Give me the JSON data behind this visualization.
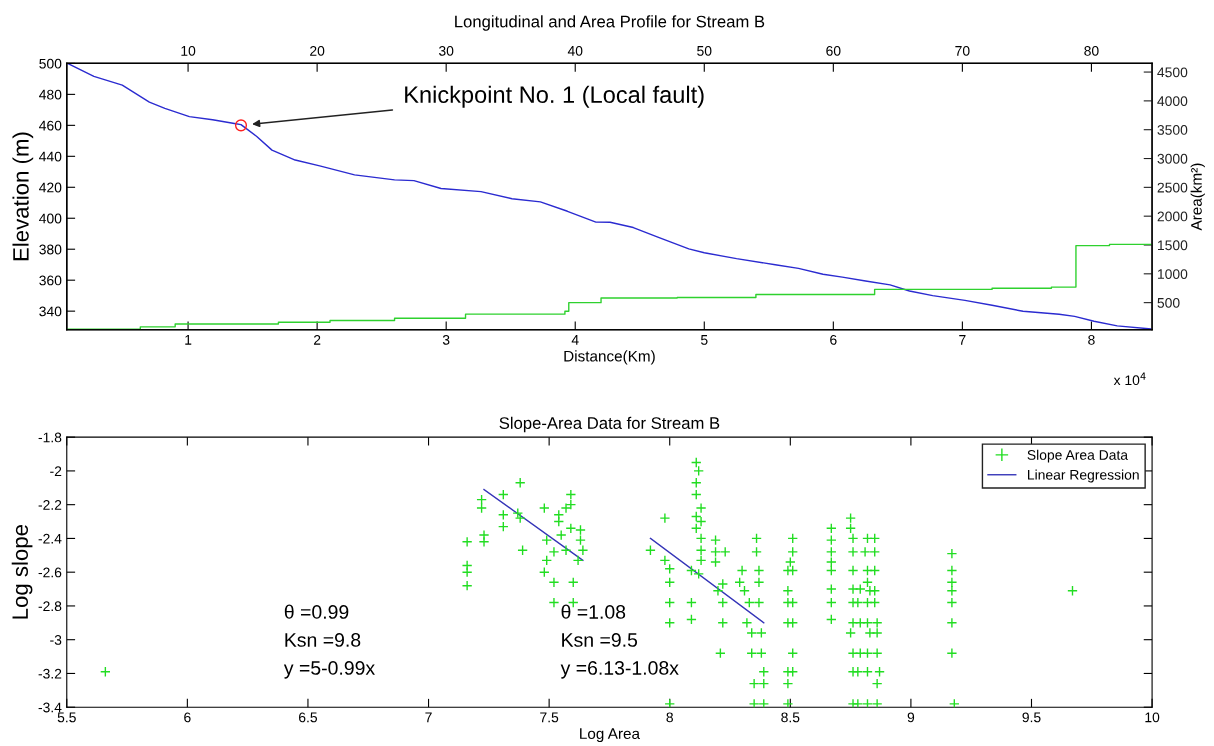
{
  "chart_data": [
    {
      "type": "line",
      "title": "Longitudinal and Area Profile for Stream B",
      "xlabel": "Distance(Km)",
      "ylabel": "Elevation (m)",
      "y2label": "Area(km²)",
      "xlim": [
        0.06,
        8.47
      ],
      "xticks": [
        1,
        2,
        3,
        4,
        5,
        6,
        7,
        8
      ],
      "x2lim": [
        0.6,
        84.7
      ],
      "x2ticks": [
        10,
        20,
        30,
        40,
        50,
        60,
        70,
        80
      ],
      "ylim": [
        328,
        500
      ],
      "yticks": [
        340,
        360,
        380,
        400,
        420,
        440,
        460,
        480,
        500
      ],
      "y2lim": [
        30,
        4650
      ],
      "y2ticks": [
        500,
        1000,
        1500,
        2000,
        2500,
        3000,
        3500,
        4000,
        4500
      ],
      "annotations": [
        "Knickpoint No. 1 (Local fault)",
        "x 10$^{4}$"
      ],
      "series": [
        {
          "color": "#2b2bd0",
          "x": [
            0.067,
            0.27,
            0.49,
            0.7,
            0.82,
            1.01,
            1.19,
            1.37,
            1.41,
            1.53,
            1.65,
            1.83,
            2.02,
            2.29,
            2.6,
            2.75,
            2.96,
            3.27,
            3.51,
            3.73,
            3.94,
            4.16,
            4.27,
            4.45,
            4.64,
            4.88,
            5.0,
            5.25,
            5.55,
            5.73,
            5.92,
            6.07,
            6.25,
            6.44,
            6.59,
            6.77,
            7.02,
            7.23,
            7.47,
            7.75,
            7.87,
            8.02,
            8.2,
            8.46
          ],
          "values": [
            500,
            491.6,
            486,
            475,
            471,
            465.6,
            463.6,
            461,
            460.5,
            453,
            444,
            437.6,
            433.8,
            428,
            424.8,
            424.3,
            419.2,
            417.2,
            412.6,
            410.6,
            404.5,
            397.5,
            397.4,
            394,
            387.8,
            380.2,
            377.7,
            373.9,
            370,
            367.6,
            363.8,
            362,
            359.5,
            357,
            353,
            350,
            347,
            343.8,
            339.9,
            338,
            336.6,
            333.5,
            330.5,
            328.5
          ]
        },
        {
          "type": "scatter",
          "color": "#ff2020",
          "marker": "circle",
          "x": [
            1.41
          ],
          "values": [
            460
          ]
        },
        {
          "type": "step",
          "axis": "y2",
          "color": "#2ed12e",
          "x": [
            0.067,
            0.63,
            0.9,
            1.7,
            2.1,
            2.6,
            3.15,
            3.92,
            3.95,
            4.2,
            4.79,
            5.4,
            6.32,
            7.23,
            7.69,
            7.88,
            8.14,
            8.46
          ],
          "values": [
            40,
            80,
            130,
            160,
            190,
            230,
            300,
            350,
            500,
            580,
            590,
            640,
            730,
            750,
            770,
            1490,
            1510,
            1510
          ]
        }
      ]
    },
    {
      "type": "scatter",
      "title": "Slope-Area Data for Stream B",
      "xlabel": "Log Area",
      "ylabel": "Log slope",
      "xlim": [
        5.5,
        10
      ],
      "xticks": [
        5.5,
        6,
        6.5,
        7,
        7.5,
        8,
        8.5,
        9,
        9.5,
        10
      ],
      "ylim": [
        -3.4,
        -1.8
      ],
      "yticks": [
        -3.4,
        -3.2,
        -3,
        -2.8,
        -2.6,
        -2.4,
        -2.2,
        -2,
        -1.8
      ],
      "legend": "top right",
      "annotations": [
        "θ =0.99\nKsn =9.8\ny =5-0.99x",
        "θ =1.08\nKsn =9.5\ny =6.13-1.08x"
      ],
      "series": [
        {
          "name": "Slope Area Data",
          "color": "#22dd22",
          "marker": "cross",
          "x": [
            5.66,
            7.16,
            7.16,
            7.16,
            7.16,
            7.22,
            7.22,
            7.23,
            7.23,
            7.31,
            7.31,
            7.31,
            7.38,
            7.37,
            7.38,
            7.39,
            7.48,
            7.49,
            7.49,
            7.48,
            7.52,
            7.52,
            7.52,
            7.54,
            7.54,
            7.55,
            7.57,
            7.59,
            7.59,
            7.57,
            7.6,
            7.6,
            7.63,
            7.63,
            7.64,
            7.62,
            7.59,
            7.92,
            7.98,
            7.98,
            8.0,
            8.0,
            8.0,
            8.0,
            8.0,
            8.09,
            8.09,
            8.09,
            8.11,
            8.12,
            8.11,
            8.11,
            8.13,
            8.11,
            8.13,
            8.11,
            8.13,
            8.13,
            8.13,
            8.12,
            8.19,
            8.19,
            8.19,
            8.22,
            8.22,
            8.22,
            8.21,
            8.23,
            8.2,
            8.3,
            8.29,
            8.31,
            8.33,
            8.32,
            8.34,
            8.34,
            8.35,
            8.35,
            8.36,
            8.36,
            8.37,
            8.37,
            8.37,
            8.38,
            8.38,
            8.39,
            8.39,
            8.39,
            8.49,
            8.49,
            8.49,
            8.49,
            8.49,
            8.49,
            8.49,
            8.51,
            8.51,
            8.51,
            8.51,
            8.51,
            8.51,
            8.5,
            8.51,
            8.67,
            8.67,
            8.67,
            8.67,
            8.67,
            8.67,
            8.67,
            8.67,
            8.75,
            8.75,
            8.76,
            8.76,
            8.76,
            8.76,
            8.76,
            8.76,
            8.75,
            8.76,
            8.76,
            8.76,
            8.79,
            8.78,
            8.79,
            8.79,
            8.78,
            8.78,
            8.82,
            8.81,
            8.82,
            8.82,
            8.83,
            8.82,
            8.82,
            8.83,
            8.82,
            8.82,
            8.82,
            8.85,
            8.85,
            8.85,
            8.85,
            8.85,
            8.86,
            8.86,
            8.86,
            8.87,
            8.86,
            8.86,
            9.17,
            9.17,
            9.17,
            9.17,
            9.17,
            9.17,
            9.17,
            9.18,
            9.67
          ],
          "values": [
            -3.19,
            -2.42,
            -2.56,
            -2.6,
            -2.68,
            -2.17,
            -2.22,
            -2.38,
            -2.42,
            -2.14,
            -2.26,
            -2.33,
            -2.07,
            -2.25,
            -2.28,
            -2.47,
            -2.22,
            -2.41,
            -2.53,
            -2.6,
            -2.48,
            -2.66,
            -2.78,
            -2.26,
            -2.3,
            -2.38,
            -2.22,
            -2.14,
            -2.34,
            -2.47,
            -2.66,
            -2.78,
            -2.35,
            -2.41,
            -2.47,
            -2.53,
            -2.2,
            -2.47,
            -2.28,
            -2.53,
            -2.58,
            -2.66,
            -2.78,
            -2.9,
            -3.38,
            -2.78,
            -2.88,
            -2.59,
            -1.95,
            -2.0,
            -2.07,
            -2.14,
            -2.22,
            -2.27,
            -2.3,
            -2.34,
            -2.4,
            -2.47,
            -2.53,
            -2.61,
            -2.41,
            -2.48,
            -2.54,
            -2.67,
            -2.78,
            -2.9,
            -3.08,
            -2.48,
            -2.71,
            -2.59,
            -2.66,
            -2.71,
            -2.78,
            -2.9,
            -2.96,
            -3.08,
            -3.26,
            -3.38,
            -2.48,
            -2.4,
            -2.59,
            -2.66,
            -2.78,
            -2.96,
            -3.08,
            -3.19,
            -3.26,
            -3.38,
            -2.59,
            -2.71,
            -2.78,
            -2.9,
            -3.19,
            -3.26,
            -3.38,
            -2.4,
            -2.48,
            -2.59,
            -2.78,
            -2.9,
            -3.08,
            -2.54,
            -3.19,
            -2.34,
            -2.41,
            -2.48,
            -2.54,
            -2.59,
            -2.7,
            -2.78,
            -2.88,
            -2.28,
            -2.34,
            -2.4,
            -2.48,
            -2.59,
            -2.7,
            -2.78,
            -2.9,
            -2.96,
            -3.08,
            -3.19,
            -3.38,
            -2.7,
            -2.78,
            -2.9,
            -3.08,
            -3.19,
            -3.38,
            -2.4,
            -2.48,
            -2.59,
            -2.66,
            -2.71,
            -2.78,
            -2.9,
            -2.96,
            -3.08,
            -3.19,
            -3.38,
            -2.4,
            -2.48,
            -2.59,
            -2.71,
            -2.78,
            -2.9,
            -2.96,
            -3.08,
            -3.19,
            -3.26,
            -3.38,
            -2.49,
            -2.59,
            -2.66,
            -2.71,
            -2.78,
            -2.9,
            -3.08,
            -3.38,
            -2.71
          ]
        },
        {
          "type": "line",
          "name": "Linear Regression",
          "color": "#3535b8",
          "x": [
            7.23,
            7.64,
            7.78,
            7.92,
            8.39
          ],
          "values": [
            -2.11,
            -2.53,
            null,
            -2.4,
            -2.9
          ]
        }
      ]
    }
  ]
}
